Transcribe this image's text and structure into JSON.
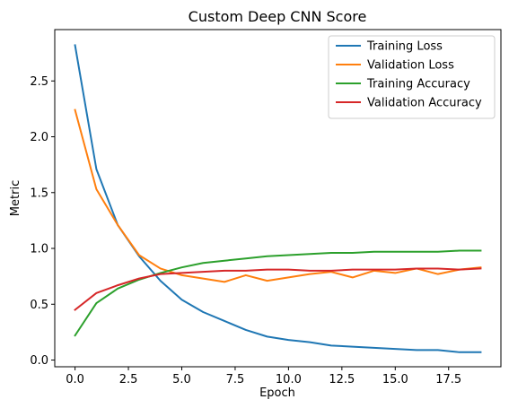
{
  "chart_data": {
    "type": "line",
    "title": "Custom Deep CNN Score",
    "xlabel": "Epoch",
    "ylabel": "Metric",
    "xlim": [
      -0.95,
      19.95
    ],
    "ylim": [
      -0.06,
      2.96
    ],
    "grid": false,
    "legend_position": "top-right",
    "xticks": [
      0.0,
      2.5,
      5.0,
      7.5,
      10.0,
      12.5,
      15.0,
      17.5
    ],
    "xtick_labels": [
      "0.0",
      "2.5",
      "5.0",
      "7.5",
      "10.0",
      "12.5",
      "15.0",
      "17.5"
    ],
    "yticks": [
      0.0,
      0.5,
      1.0,
      1.5,
      2.0,
      2.5
    ],
    "ytick_labels": [
      "0.0",
      "0.5",
      "1.0",
      "1.5",
      "2.0",
      "2.5"
    ],
    "x": [
      0,
      1,
      2,
      3,
      4,
      5,
      6,
      7,
      8,
      9,
      10,
      11,
      12,
      13,
      14,
      15,
      16,
      17,
      18,
      19
    ],
    "series": [
      {
        "name": "Training Loss",
        "color": "#1f77b4",
        "values": [
          2.82,
          1.71,
          1.21,
          0.93,
          0.71,
          0.54,
          0.43,
          0.35,
          0.27,
          0.21,
          0.18,
          0.16,
          0.13,
          0.12,
          0.11,
          0.1,
          0.09,
          0.09,
          0.07,
          0.07
        ]
      },
      {
        "name": "Validation Loss",
        "color": "#ff7f0e",
        "values": [
          2.24,
          1.53,
          1.21,
          0.94,
          0.82,
          0.76,
          0.73,
          0.7,
          0.76,
          0.71,
          0.74,
          0.77,
          0.79,
          0.74,
          0.8,
          0.78,
          0.82,
          0.77,
          0.81,
          0.83
        ]
      },
      {
        "name": "Training Accuracy",
        "color": "#2ca02c",
        "values": [
          0.22,
          0.51,
          0.64,
          0.72,
          0.78,
          0.83,
          0.87,
          0.89,
          0.91,
          0.93,
          0.94,
          0.95,
          0.96,
          0.96,
          0.97,
          0.97,
          0.97,
          0.97,
          0.98,
          0.98
        ]
      },
      {
        "name": "Validation Accuracy",
        "color": "#d62728",
        "values": [
          0.45,
          0.6,
          0.67,
          0.73,
          0.77,
          0.78,
          0.79,
          0.8,
          0.8,
          0.81,
          0.81,
          0.8,
          0.8,
          0.81,
          0.81,
          0.81,
          0.82,
          0.82,
          0.81,
          0.82
        ]
      }
    ]
  }
}
